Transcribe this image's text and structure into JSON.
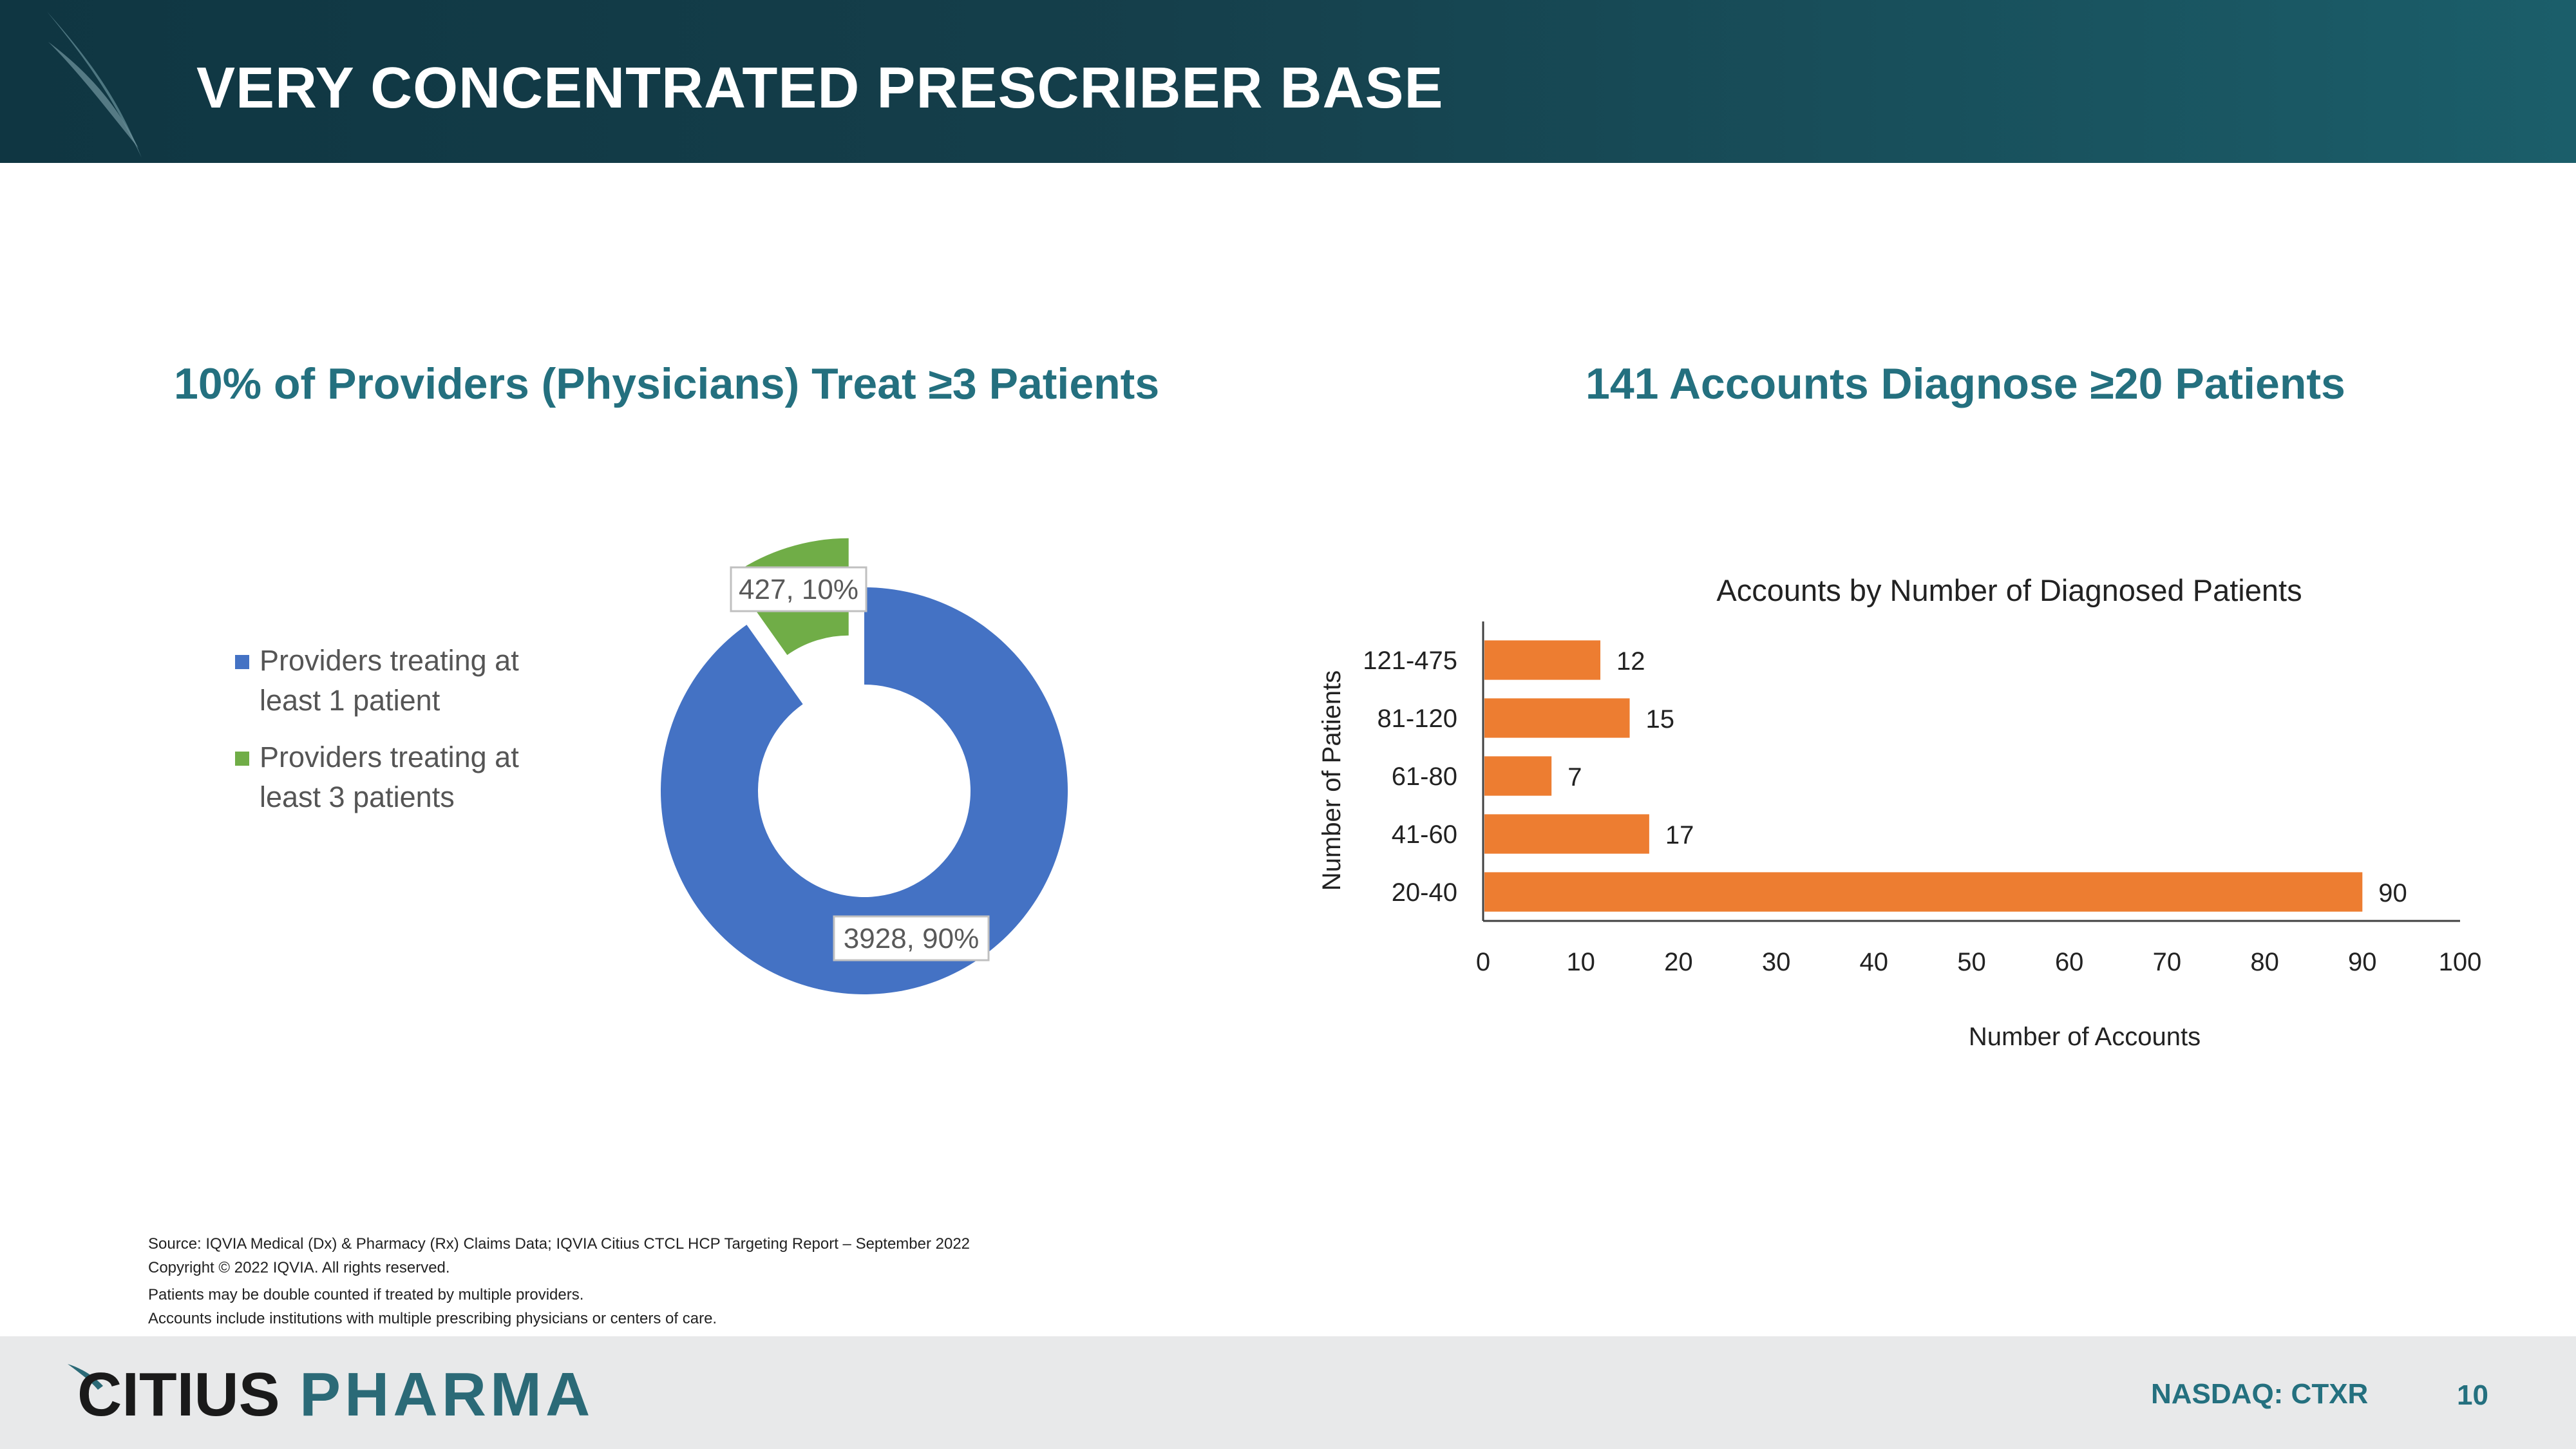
{
  "header": {
    "title": "VERY CONCENTRATED PRESCRIBER BASE"
  },
  "left_panel": {
    "title": "10% of Providers (Physicians) Treat ≥3 Patients",
    "legend": [
      {
        "label_line1": "Providers treating at",
        "label_line2": "least 1 patient",
        "color": "#4472c4"
      },
      {
        "label_line1": "Providers treating at",
        "label_line2": "least 3 patients",
        "color": "#70ad47"
      }
    ]
  },
  "right_panel": {
    "title": "141 Accounts Diagnose ≥20 Patients"
  },
  "chart_data": [
    {
      "type": "pie",
      "variant": "donut",
      "categories": [
        "Providers treating at least 1 patient",
        "Providers treating at least 3 patients"
      ],
      "values": [
        3928,
        427
      ],
      "percent_labels": [
        "90%",
        "10%"
      ],
      "data_labels": [
        "3928, 90%",
        "427, 10%"
      ],
      "colors": [
        "#4472c4",
        "#70ad47"
      ],
      "exploded_slice": 1
    },
    {
      "type": "bar",
      "orientation": "horizontal",
      "title": "Accounts by Number of Diagnosed Patients",
      "categories": [
        "20-40",
        "41-60",
        "61-80",
        "81-120",
        "121-475"
      ],
      "values": [
        90,
        17,
        7,
        15,
        12
      ],
      "xlabel": "Number of Accounts",
      "ylabel": "Number of Patients",
      "xlim": [
        0,
        100
      ],
      "xticks": [
        0,
        10,
        20,
        30,
        40,
        50,
        60,
        70,
        80,
        90,
        100
      ],
      "grid": false,
      "color": "#ed7d31"
    }
  ],
  "footer": {
    "source": "Source: IQVIA Medical (Dx) & Pharmacy (Rx) Claims Data; IQVIA Citius CTCL HCP Targeting Report – September 2022",
    "copyright": "Copyright © 2022 IQVIA. All rights reserved.",
    "note1": "Patients may be double counted if treated by multiple providers.",
    "note2": "Accounts include institutions with multiple prescribing physicians or centers of care.",
    "brand_part1": "CITIUS",
    "brand_part2": "PHARMA",
    "ticker": "NASDAQ: CTXR",
    "page": "10"
  }
}
